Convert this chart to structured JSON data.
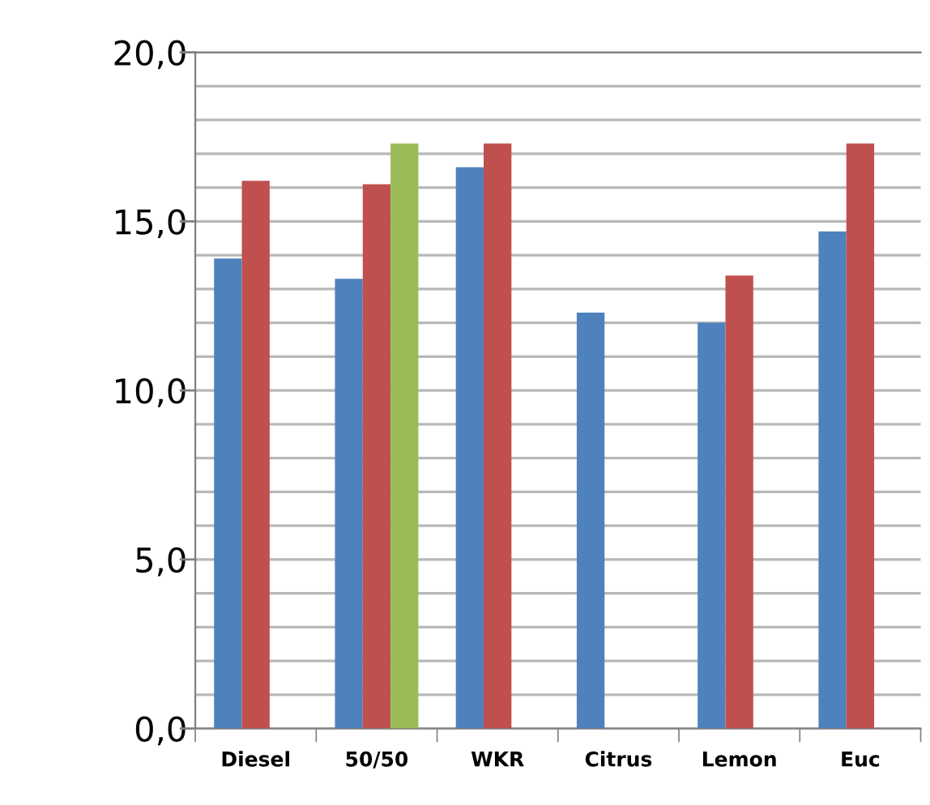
{
  "chart_data": {
    "type": "bar",
    "categories": [
      "Diesel",
      "50/50",
      "WKR",
      "Citrus",
      "Lemon",
      "Euc"
    ],
    "series": [
      {
        "color": "#4f81bd",
        "values": [
          13.9,
          13.3,
          16.6,
          12.3,
          12.0,
          14.7
        ]
      },
      {
        "color": "#c0504d",
        "values": [
          16.2,
          16.1,
          17.3,
          null,
          13.4,
          17.3
        ]
      },
      {
        "color": "#9bbb59",
        "values": [
          null,
          17.3,
          null,
          null,
          null,
          null
        ]
      }
    ],
    "ylim": [
      0,
      20
    ],
    "yticks": [
      {
        "value": 0,
        "label": "0,0"
      },
      {
        "value": 1,
        "label": null
      },
      {
        "value": 2,
        "label": null
      },
      {
        "value": 3,
        "label": null
      },
      {
        "value": 4,
        "label": null
      },
      {
        "value": 5,
        "label": "5,0"
      },
      {
        "value": 6,
        "label": null
      },
      {
        "value": 7,
        "label": null
      },
      {
        "value": 8,
        "label": null
      },
      {
        "value": 9,
        "label": null
      },
      {
        "value": 10,
        "label": "10,0"
      },
      {
        "value": 11,
        "label": null
      },
      {
        "value": 12,
        "label": null
      },
      {
        "value": 13,
        "label": null
      },
      {
        "value": 14,
        "label": null
      },
      {
        "value": 15,
        "label": "15,0"
      },
      {
        "value": 16,
        "label": null
      },
      {
        "value": 17,
        "label": null
      },
      {
        "value": 18,
        "label": null
      },
      {
        "value": 19,
        "label": null
      },
      {
        "value": 20,
        "label": "20,0"
      }
    ],
    "grid": "y"
  }
}
